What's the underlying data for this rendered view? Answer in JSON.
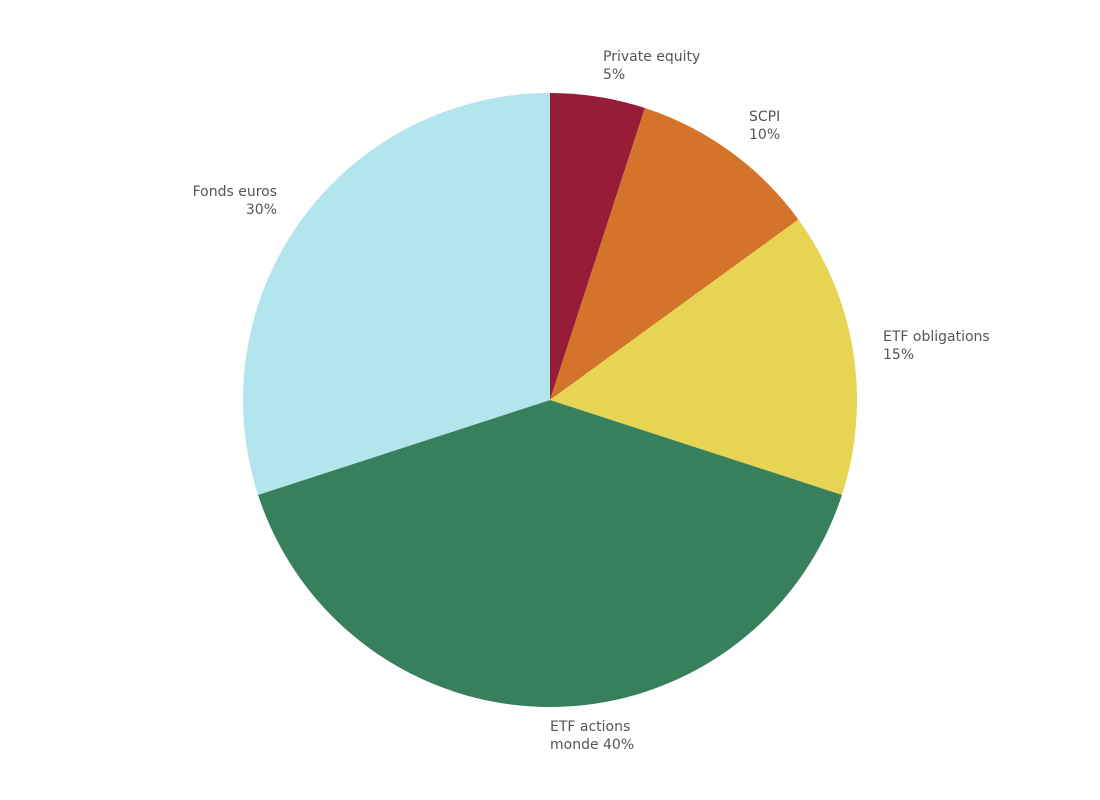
{
  "chart_data": {
    "type": "pie",
    "start_angle_deg": 0,
    "direction": "clockwise",
    "slices": [
      {
        "label_line1": "Private equity",
        "label_line2": "5%",
        "value": 5,
        "color": "#961c38"
      },
      {
        "label_line1": "SCPI",
        "label_line2": "10%",
        "value": 10,
        "color": "#d4742a"
      },
      {
        "label_line1": "ETF obligations",
        "label_line2": "15%",
        "value": 15,
        "color": "#e8d453"
      },
      {
        "label_line1": "ETF actions",
        "label_line2": "monde 40%",
        "value": 40,
        "color": "#38805c"
      },
      {
        "label_line1": "Fonds euros",
        "label_line2": "30%",
        "value": 30,
        "color": "#b3e5ec"
      }
    ]
  }
}
